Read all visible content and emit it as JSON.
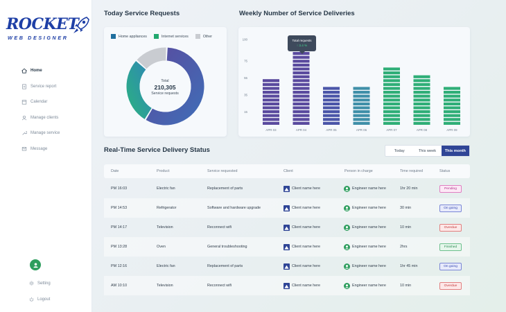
{
  "brand": {
    "name": "ROCKET",
    "subtitle": "WEB DESIGNER"
  },
  "sidebar": {
    "items": [
      {
        "label": "Home",
        "icon": "home-icon",
        "active": true
      },
      {
        "label": "Service report",
        "icon": "report-icon"
      },
      {
        "label": "Calendar",
        "icon": "calendar-icon"
      },
      {
        "label": "Manage clients",
        "icon": "clients-icon"
      },
      {
        "label": "Manage service",
        "icon": "service-icon"
      },
      {
        "label": "Message",
        "icon": "message-icon"
      }
    ],
    "setting_label": "Setting",
    "logout_label": "Logout"
  },
  "service_requests": {
    "title": "Today Service Requests",
    "legend": [
      {
        "label": "Home appliances",
        "color": "#1f6f9e"
      },
      {
        "label": "Internet services",
        "color": "#22a86f"
      },
      {
        "label": "Other",
        "color": "#c9ccd1"
      }
    ],
    "total_label": "Total",
    "total_value": "210,305",
    "total_caption": "Service requests"
  },
  "weekly": {
    "title": "Weekly Number of Service Deliveries",
    "tooltip_title": "Total requests",
    "tooltip_value": "↑ 3.4 %"
  },
  "chart_data": [
    {
      "type": "pie",
      "title": "Today Service Requests",
      "labels": [
        "Home appliances",
        "Internet services",
        "Other"
      ],
      "values": [
        58,
        28,
        14
      ],
      "colors": [
        "#4f5bb1",
        "#2ab37e",
        "#c9ccd1"
      ]
    },
    {
      "type": "bar",
      "title": "Weekly Number of Service Deliveries",
      "categories": [
        "APR 03",
        "APR 04",
        "APR 05",
        "APR 06",
        "APR 07",
        "APR 08",
        "APR 09"
      ],
      "values": [
        54,
        85,
        46,
        47,
        71,
        60,
        44
      ],
      "colors": [
        "#5a4a9e",
        "#5a4a9e",
        "#4a55a8",
        "#3f8fa8",
        "#2fae77",
        "#2fae77",
        "#2fae77"
      ],
      "yticks": [
        15,
        35,
        55,
        75,
        100
      ],
      "ylim": [
        0,
        100
      ],
      "highlight": "APR 04"
    }
  ],
  "status": {
    "title": "Real-Time Service Delivery Status",
    "tabs": [
      {
        "label": "Today",
        "active": false
      },
      {
        "label": "This week",
        "active": false
      },
      {
        "label": "This month",
        "active": true
      }
    ],
    "columns": [
      "Date",
      "Product",
      "Service requested",
      "Client",
      "Person in charge",
      "Time required",
      "Status"
    ],
    "rows": [
      {
        "date": "PM 16:03",
        "product": "Electric fan",
        "service": "Replacement of parts",
        "client": "Client name here",
        "person": "Engineer name here",
        "time": "1hr 20 min",
        "status": "Pending",
        "kind": "pending"
      },
      {
        "date": "PM 14:53",
        "product": "Refrigerator",
        "service": "Software and hardware upgrade",
        "client": "Client name here",
        "person": "Engineer name here",
        "time": "30 min",
        "status": "On going",
        "kind": "ongoing"
      },
      {
        "date": "PM 14:17",
        "product": "Television",
        "service": "Reconnect wifi",
        "client": "Client name here",
        "person": "Engineer name here",
        "time": "10 min",
        "status": "Overdue",
        "kind": "overdue"
      },
      {
        "date": "PM 13:28",
        "product": "Oven",
        "service": "General troubleshooting",
        "client": "Client name here",
        "person": "Engineer name here",
        "time": "2hrs",
        "status": "Finished",
        "kind": "finished"
      },
      {
        "date": "PM 12:16",
        "product": "Electric fan",
        "service": "Replacement of parts",
        "client": "Client name here",
        "person": "Engineer name here",
        "time": "1hr 45 min",
        "status": "On going",
        "kind": "ongoing"
      },
      {
        "date": "AM 10:10",
        "product": "Television",
        "service": "Reconnect wifi",
        "client": "Client name here",
        "person": "Engineer name here",
        "time": "10 min",
        "status": "Overdue",
        "kind": "overdue"
      }
    ]
  }
}
